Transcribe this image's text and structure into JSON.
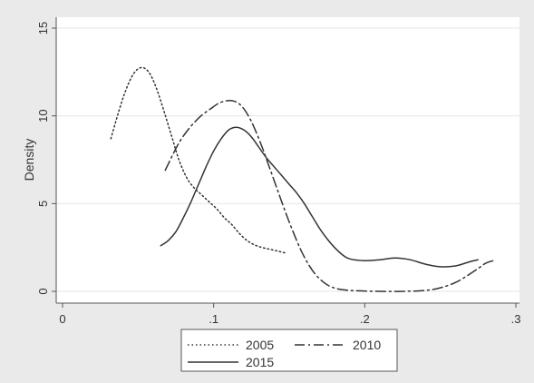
{
  "chart_data": {
    "type": "line",
    "title": "",
    "xlabel": "",
    "ylabel": "Density",
    "xlim": [
      0,
      0.3
    ],
    "ylim": [
      0,
      15
    ],
    "grid": true,
    "legend_position": "bottom",
    "x_ticks": [
      {
        "value": 0,
        "label": "0"
      },
      {
        "value": 0.1,
        "label": ".1"
      },
      {
        "value": 0.2,
        "label": ".2"
      },
      {
        "value": 0.3,
        "label": ".3"
      }
    ],
    "y_ticks": [
      {
        "value": 0,
        "label": "0"
      },
      {
        "value": 5,
        "label": "5"
      },
      {
        "value": 10,
        "label": "10"
      },
      {
        "value": 15,
        "label": "15"
      }
    ],
    "series": [
      {
        "name": "2005",
        "style": "dotted",
        "color": "#333333",
        "points": [
          [
            0.032,
            8.7
          ],
          [
            0.037,
            10.2
          ],
          [
            0.042,
            11.5
          ],
          [
            0.047,
            12.4
          ],
          [
            0.052,
            12.75
          ],
          [
            0.057,
            12.5
          ],
          [
            0.062,
            11.6
          ],
          [
            0.067,
            10.3
          ],
          [
            0.072,
            8.9
          ],
          [
            0.077,
            7.5
          ],
          [
            0.082,
            6.5
          ],
          [
            0.087,
            5.9
          ],
          [
            0.092,
            5.5
          ],
          [
            0.097,
            5.1
          ],
          [
            0.102,
            4.7
          ],
          [
            0.107,
            4.2
          ],
          [
            0.112,
            3.8
          ],
          [
            0.117,
            3.3
          ],
          [
            0.122,
            2.9
          ],
          [
            0.127,
            2.65
          ],
          [
            0.132,
            2.5
          ],
          [
            0.137,
            2.4
          ],
          [
            0.142,
            2.3
          ],
          [
            0.147,
            2.2
          ]
        ]
      },
      {
        "name": "2010",
        "style": "dashdot",
        "color": "#333333",
        "points": [
          [
            0.068,
            6.9
          ],
          [
            0.073,
            7.8
          ],
          [
            0.078,
            8.6
          ],
          [
            0.083,
            9.2
          ],
          [
            0.088,
            9.7
          ],
          [
            0.093,
            10.1
          ],
          [
            0.098,
            10.4
          ],
          [
            0.103,
            10.7
          ],
          [
            0.108,
            10.85
          ],
          [
            0.113,
            10.85
          ],
          [
            0.118,
            10.6
          ],
          [
            0.123,
            10.0
          ],
          [
            0.128,
            9.1
          ],
          [
            0.133,
            8.0
          ],
          [
            0.138,
            6.8
          ],
          [
            0.143,
            5.6
          ],
          [
            0.148,
            4.4
          ],
          [
            0.153,
            3.3
          ],
          [
            0.158,
            2.3
          ],
          [
            0.163,
            1.5
          ],
          [
            0.168,
            0.9
          ],
          [
            0.173,
            0.5
          ],
          [
            0.178,
            0.25
          ],
          [
            0.185,
            0.1
          ],
          [
            0.195,
            0.03
          ],
          [
            0.21,
            0.0
          ],
          [
            0.225,
            0.0
          ],
          [
            0.24,
            0.05
          ],
          [
            0.25,
            0.2
          ],
          [
            0.26,
            0.5
          ],
          [
            0.268,
            0.9
          ],
          [
            0.275,
            1.3
          ],
          [
            0.28,
            1.6
          ],
          [
            0.285,
            1.75
          ]
        ]
      },
      {
        "name": "2015",
        "style": "solid",
        "color": "#333333",
        "points": [
          [
            0.065,
            2.6
          ],
          [
            0.07,
            2.9
          ],
          [
            0.075,
            3.4
          ],
          [
            0.08,
            4.2
          ],
          [
            0.085,
            5.1
          ],
          [
            0.09,
            6.1
          ],
          [
            0.095,
            7.1
          ],
          [
            0.1,
            8.0
          ],
          [
            0.105,
            8.7
          ],
          [
            0.11,
            9.2
          ],
          [
            0.115,
            9.35
          ],
          [
            0.12,
            9.2
          ],
          [
            0.125,
            8.8
          ],
          [
            0.13,
            8.2
          ],
          [
            0.135,
            7.6
          ],
          [
            0.14,
            7.1
          ],
          [
            0.145,
            6.6
          ],
          [
            0.15,
            6.1
          ],
          [
            0.155,
            5.6
          ],
          [
            0.16,
            5.0
          ],
          [
            0.165,
            4.3
          ],
          [
            0.17,
            3.6
          ],
          [
            0.175,
            3.0
          ],
          [
            0.18,
            2.5
          ],
          [
            0.185,
            2.1
          ],
          [
            0.19,
            1.85
          ],
          [
            0.2,
            1.75
          ],
          [
            0.21,
            1.8
          ],
          [
            0.22,
            1.9
          ],
          [
            0.23,
            1.8
          ],
          [
            0.24,
            1.55
          ],
          [
            0.25,
            1.4
          ],
          [
            0.26,
            1.45
          ],
          [
            0.27,
            1.7
          ],
          [
            0.275,
            1.8
          ]
        ]
      }
    ]
  }
}
